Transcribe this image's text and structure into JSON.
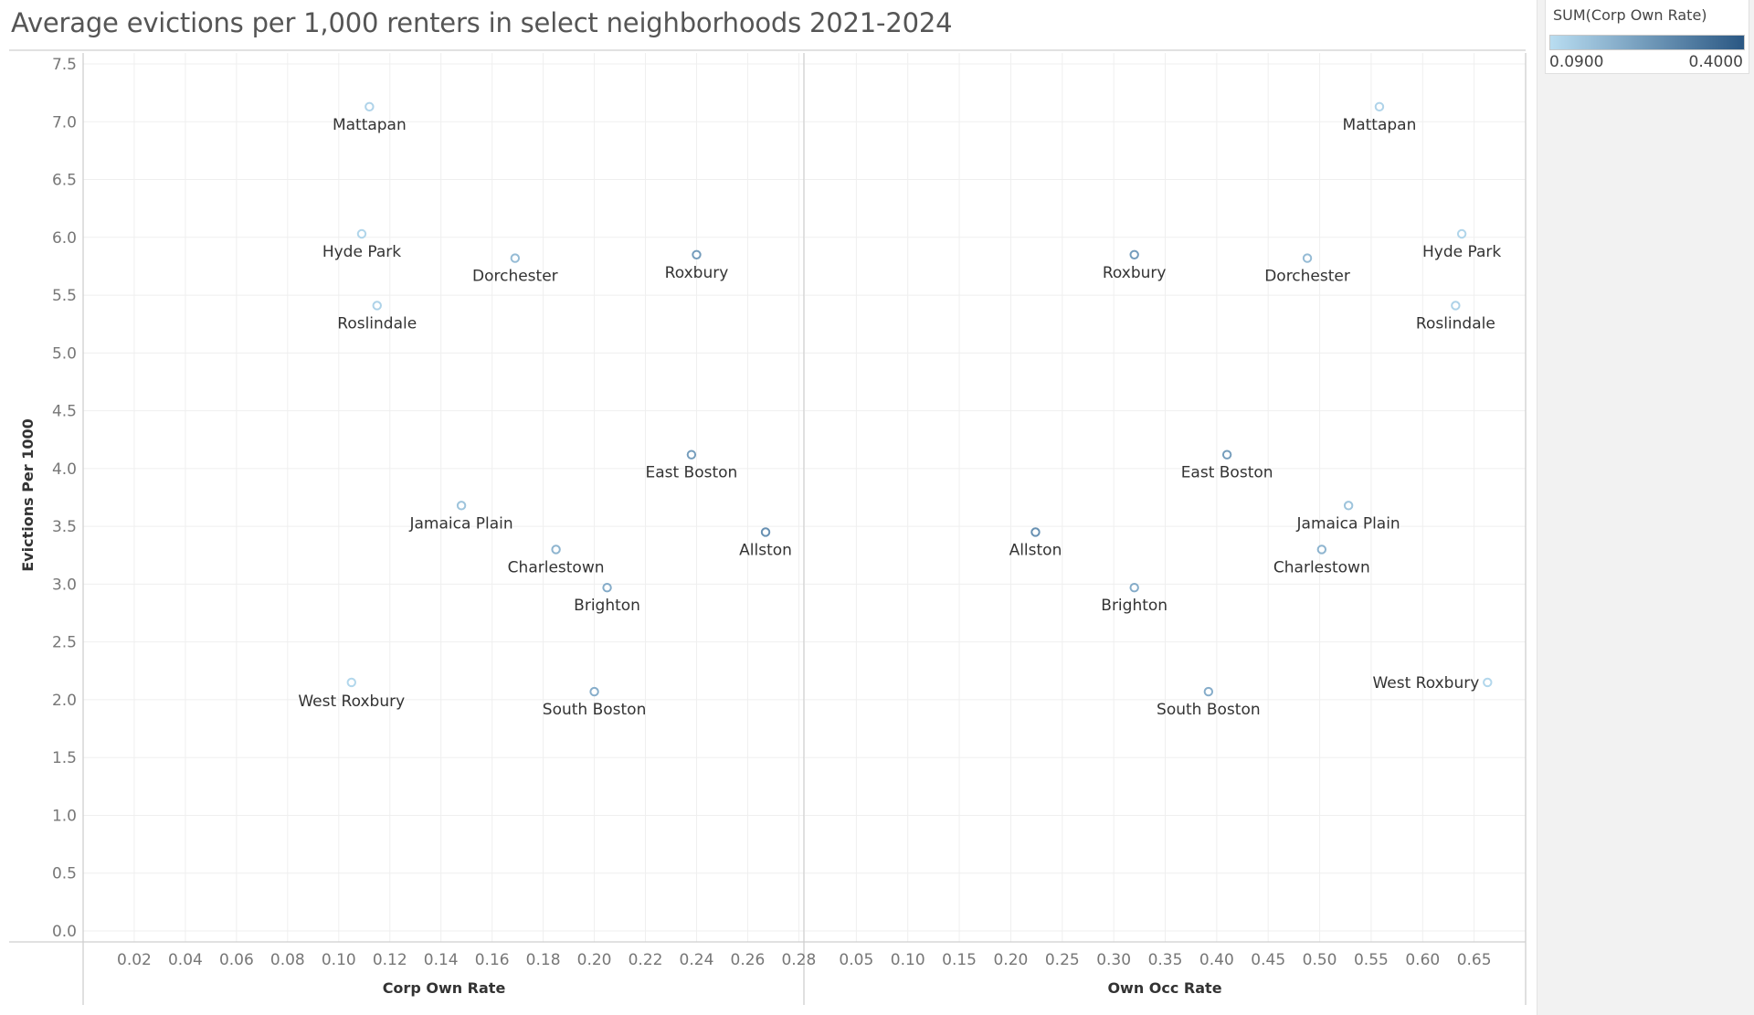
{
  "title": "Average evictions per 1,000 renters in select neighborhoods 2021-2024",
  "legend": {
    "title": "SUM(Corp Own Rate)",
    "min_label": "0.0900",
    "max_label": "0.4000",
    "color_low": "#b9ddf1",
    "color_high": "#2a5783"
  },
  "chart_data": {
    "type": "scatter",
    "title": "Average evictions per 1,000 renters in select neighborhoods 2021-2024",
    "ylabel": "Evictions Per 1000",
    "ylim": [
      0,
      7.5
    ],
    "yticks": [
      "0.0",
      "0.5",
      "1.0",
      "1.5",
      "2.0",
      "2.5",
      "3.0",
      "3.5",
      "4.0",
      "4.5",
      "5.0",
      "5.5",
      "6.0",
      "6.5",
      "7.0",
      "7.5"
    ],
    "grid": true,
    "legend_position": "top-right",
    "color_encoding": "SUM(Corp Own Rate)",
    "panels": [
      {
        "xlabel": "Corp Own Rate",
        "xlim": [
          0,
          0.282
        ],
        "xticks": [
          "0.02",
          "0.04",
          "0.06",
          "0.08",
          "0.10",
          "0.12",
          "0.14",
          "0.16",
          "0.18",
          "0.20",
          "0.22",
          "0.24",
          "0.26",
          "0.28"
        ],
        "points": [
          {
            "label": "Mattapan",
            "x": 0.112,
            "y": 7.13
          },
          {
            "label": "Hyde Park",
            "x": 0.109,
            "y": 6.03
          },
          {
            "label": "Dorchester",
            "x": 0.169,
            "y": 5.82
          },
          {
            "label": "Roxbury",
            "x": 0.24,
            "y": 5.85
          },
          {
            "label": "Roslindale",
            "x": 0.115,
            "y": 5.41
          },
          {
            "label": "East Boston",
            "x": 0.238,
            "y": 4.12
          },
          {
            "label": "Jamaica Plain",
            "x": 0.148,
            "y": 3.68
          },
          {
            "label": "Allston",
            "x": 0.267,
            "y": 3.45
          },
          {
            "label": "Charlestown",
            "x": 0.185,
            "y": 3.3
          },
          {
            "label": "Brighton",
            "x": 0.205,
            "y": 2.97
          },
          {
            "label": "West Roxbury",
            "x": 0.105,
            "y": 2.15
          },
          {
            "label": "South Boston",
            "x": 0.2,
            "y": 2.07
          }
        ]
      },
      {
        "xlabel": "Own Occ Rate",
        "xlim": [
          0,
          0.7
        ],
        "xticks": [
          "0.05",
          "0.10",
          "0.15",
          "0.20",
          "0.25",
          "0.30",
          "0.35",
          "0.40",
          "0.45",
          "0.50",
          "0.55",
          "0.60",
          "0.65"
        ],
        "points": [
          {
            "label": "Mattapan",
            "x": 0.558,
            "y": 7.13
          },
          {
            "label": "Hyde Park",
            "x": 0.638,
            "y": 6.03
          },
          {
            "label": "Dorchester",
            "x": 0.488,
            "y": 5.82
          },
          {
            "label": "Roxbury",
            "x": 0.32,
            "y": 5.85
          },
          {
            "label": "Roslindale",
            "x": 0.632,
            "y": 5.41
          },
          {
            "label": "East Boston",
            "x": 0.41,
            "y": 4.12
          },
          {
            "label": "Jamaica Plain",
            "x": 0.528,
            "y": 3.68
          },
          {
            "label": "Allston",
            "x": 0.224,
            "y": 3.45
          },
          {
            "label": "Charlestown",
            "x": 0.502,
            "y": 3.3
          },
          {
            "label": "Brighton",
            "x": 0.32,
            "y": 2.97
          },
          {
            "label": "West Roxbury",
            "x": 0.663,
            "y": 2.15
          },
          {
            "label": "South Boston",
            "x": 0.392,
            "y": 2.07
          }
        ]
      }
    ]
  }
}
